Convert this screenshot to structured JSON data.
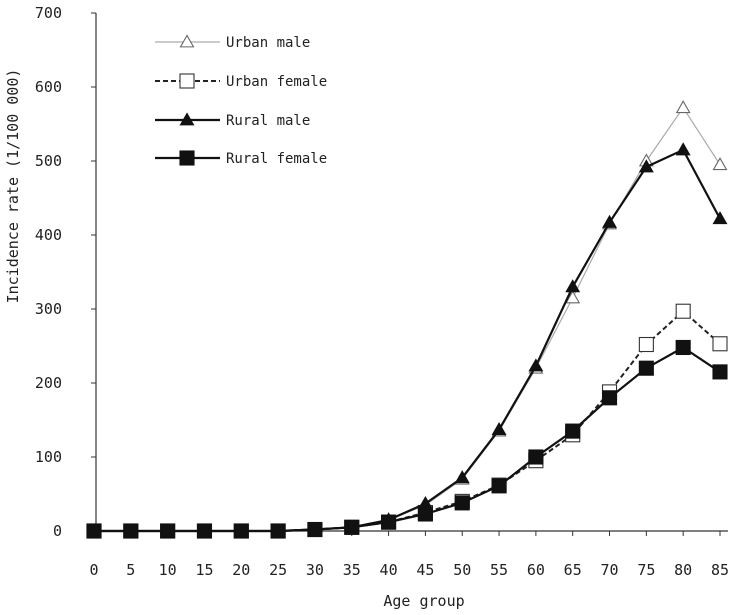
{
  "chart_data": {
    "type": "line",
    "title": "",
    "xlabel": "Age group",
    "ylabel": "Incidence rate (1/100 000)",
    "x": [
      0,
      5,
      10,
      15,
      20,
      25,
      30,
      35,
      40,
      45,
      50,
      55,
      60,
      65,
      70,
      75,
      80,
      85
    ],
    "xlim": [
      0,
      85
    ],
    "ylim": [
      0,
      700
    ],
    "y_ticks": [
      0,
      100,
      200,
      300,
      400,
      500,
      600,
      700
    ],
    "grid": false,
    "legend_position": "top-left",
    "series": [
      {
        "name": "Urban male",
        "color": "#aaaaaa",
        "line_style": "solid-thin",
        "marker": "open-triangle",
        "values": [
          0,
          0,
          0,
          0,
          0,
          0,
          2,
          5,
          15,
          35,
          70,
          135,
          220,
          315,
          415,
          500,
          572,
          495
        ]
      },
      {
        "name": "Urban female",
        "color": "#222222",
        "line_style": "dashed",
        "marker": "open-square",
        "values": [
          0,
          0,
          0,
          0,
          0,
          0,
          2,
          5,
          12,
          25,
          40,
          62,
          95,
          130,
          188,
          252,
          297,
          253
        ]
      },
      {
        "name": "Rural male",
        "color": "#111111",
        "line_style": "solid",
        "marker": "filled-triangle",
        "values": [
          0,
          0,
          0,
          0,
          0,
          0,
          2,
          5,
          15,
          37,
          72,
          137,
          223,
          330,
          417,
          492,
          515,
          422
        ]
      },
      {
        "name": "Rural female",
        "color": "#111111",
        "line_style": "solid",
        "marker": "filled-square",
        "values": [
          0,
          0,
          0,
          0,
          0,
          0,
          2,
          5,
          12,
          23,
          38,
          61,
          100,
          135,
          180,
          220,
          248,
          215
        ]
      }
    ]
  }
}
